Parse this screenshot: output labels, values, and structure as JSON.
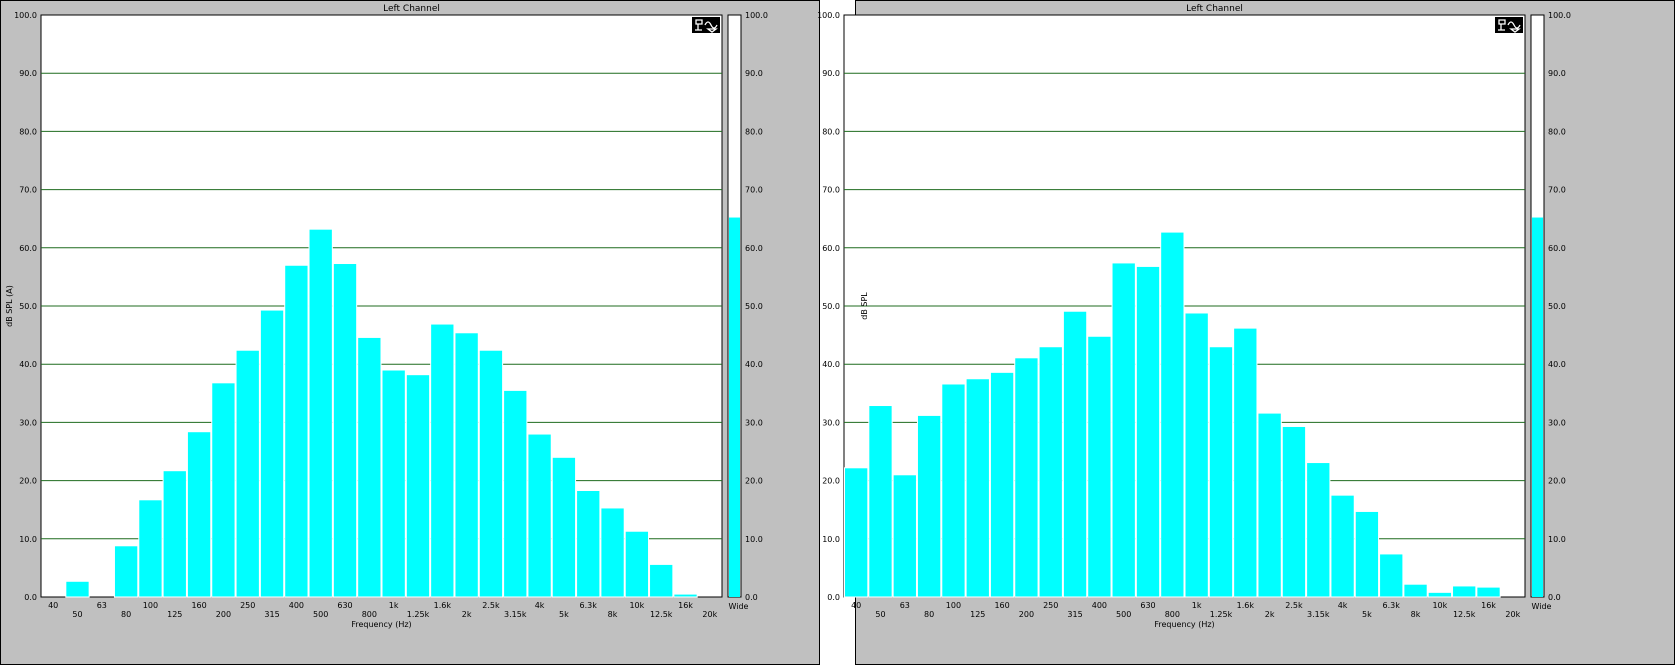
{
  "chart_data": [
    {
      "type": "bar",
      "title": "Left Channel",
      "ylabel": "dB SPL (A)",
      "xlabel": "Frequency (Hz)",
      "ylim": [
        0,
        100
      ],
      "y_ticks": [
        "0.0",
        "10.0",
        "20.0",
        "30.0",
        "40.0",
        "50.0",
        "60.0",
        "70.0",
        "80.0",
        "90.0",
        "100.0"
      ],
      "categories": [
        "40",
        "50",
        "63",
        "80",
        "100",
        "125",
        "160",
        "200",
        "250",
        "315",
        "400",
        "500",
        "630",
        "800",
        "1k",
        "1.25k",
        "1.6k",
        "2k",
        "2.5k",
        "3.15k",
        "4k",
        "5k",
        "6.3k",
        "8k",
        "10k",
        "12.5k",
        "16k",
        "20k"
      ],
      "x_labels": [
        "40",
        "50",
        "63",
        "80",
        "100",
        "125",
        "160",
        "200",
        "250",
        "315",
        "400",
        "500",
        "630",
        "800",
        "1k",
        "1.25k",
        "1.6k",
        "2k",
        "2.5k",
        "3.15k",
        "4k",
        "5k",
        "6.3k",
        "8k",
        "10k",
        "12.5k",
        "16k",
        "20k"
      ],
      "values": [
        0,
        2.7,
        0,
        8.8,
        16.7,
        21.7,
        28.4,
        36.8,
        42.4,
        49.3,
        57.0,
        63.2,
        57.3,
        44.6,
        39.0,
        38.2,
        46.9,
        45.4,
        42.4,
        35.5,
        28.0,
        24.0,
        18.3,
        15.3,
        11.3,
        5.6,
        0.5,
        0
      ],
      "level_bar": 65.2,
      "level_label": "Wide",
      "grid": true
    },
    {
      "type": "bar",
      "title": "Left Channel",
      "ylabel": "dB SPL",
      "xlabel": "Frequency (Hz)",
      "ylim": [
        0,
        100
      ],
      "y_ticks": [
        "0.0",
        "10.0",
        "20.0",
        "30.0",
        "40.0",
        "50.0",
        "60.0",
        "70.0",
        "80.0",
        "90.0",
        "100.0"
      ],
      "categories": [
        "40",
        "50",
        "63",
        "80",
        "100",
        "125",
        "160",
        "200",
        "250",
        "315",
        "400",
        "500",
        "630",
        "800",
        "1k",
        "1.25k",
        "1.6k",
        "2k",
        "2.5k",
        "3.15k",
        "4k",
        "5k",
        "6.3k",
        "8k",
        "10k",
        "12.5k",
        "16k",
        "20k"
      ],
      "x_labels": [
        "40",
        "50",
        "63",
        "80",
        "100",
        "125",
        "160",
        "200",
        "250",
        "315",
        "400",
        "500",
        "630",
        "800",
        "1k",
        "1.25k",
        "1.6k",
        "2k",
        "2.5k",
        "3.15k",
        "4k",
        "5k",
        "6.3k",
        "8k",
        "10k",
        "12.5k",
        "16k",
        "20k"
      ],
      "values": [
        22.2,
        32.9,
        21.0,
        31.2,
        36.6,
        37.5,
        38.6,
        41.1,
        43.0,
        49.1,
        44.8,
        57.4,
        56.8,
        62.7,
        48.8,
        43.0,
        46.2,
        31.6,
        29.3,
        23.1,
        17.5,
        14.7,
        7.4,
        2.2,
        0.8,
        1.9,
        1.7,
        0
      ],
      "level_bar": 65.2,
      "level_label": "Wide",
      "grid": true
    }
  ]
}
